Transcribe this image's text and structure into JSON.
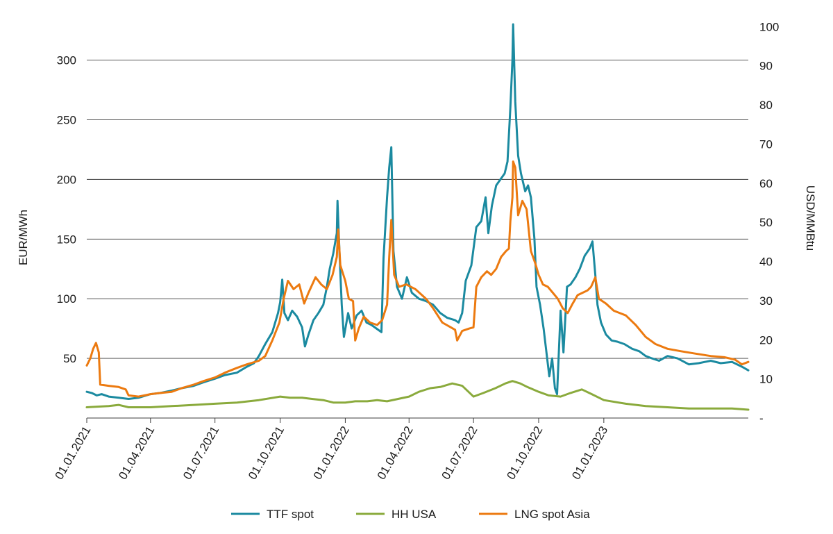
{
  "chart_data": {
    "type": "line",
    "title": "",
    "ylabel_left": "EUR/MWh",
    "ylabel_right": "USD/MMBtu",
    "ylim_left": [
      0,
      330
    ],
    "ylim_right": [
      0,
      100.6
    ],
    "yticks_left": [
      50,
      100,
      150,
      200,
      250,
      300
    ],
    "yticks_right": [
      "-",
      10,
      20,
      30,
      40,
      50,
      60,
      70,
      80,
      90,
      100
    ],
    "xlim": [
      "01.01.2021",
      "24.07.2023"
    ],
    "xticks": [
      "01.01.2021",
      "01.04.2021",
      "01.07.2021",
      "01.10.2021",
      "01.01.2022",
      "01.04.2022",
      "01.07.2022",
      "01.10.2022",
      "01.01.2023"
    ],
    "grid": "horizontal",
    "legend_position": "bottom-center",
    "series": [
      {
        "name": "TTF spot",
        "axis": "left",
        "color": "#1b8aa0",
        "points": [
          [
            "2021-01-01",
            22
          ],
          [
            "2021-01-08",
            21
          ],
          [
            "2021-01-15",
            19
          ],
          [
            "2021-01-22",
            20
          ],
          [
            "2021-02-01",
            18
          ],
          [
            "2021-02-15",
            17
          ],
          [
            "2021-03-01",
            16
          ],
          [
            "2021-03-15",
            17
          ],
          [
            "2021-04-01",
            20
          ],
          [
            "2021-04-15",
            21
          ],
          [
            "2021-05-01",
            23
          ],
          [
            "2021-05-15",
            25
          ],
          [
            "2021-06-01",
            27
          ],
          [
            "2021-06-15",
            30
          ],
          [
            "2021-07-01",
            33
          ],
          [
            "2021-07-15",
            36
          ],
          [
            "2021-08-01",
            38
          ],
          [
            "2021-08-15",
            43
          ],
          [
            "2021-08-25",
            46
          ],
          [
            "2021-09-01",
            52
          ],
          [
            "2021-09-10",
            62
          ],
          [
            "2021-09-20",
            72
          ],
          [
            "2021-09-28",
            88
          ],
          [
            "2021-10-01",
            97
          ],
          [
            "2021-10-04",
            116
          ],
          [
            "2021-10-07",
            88
          ],
          [
            "2021-10-12",
            82
          ],
          [
            "2021-10-18",
            90
          ],
          [
            "2021-10-25",
            85
          ],
          [
            "2021-11-01",
            76
          ],
          [
            "2021-11-05",
            60
          ],
          [
            "2021-11-10",
            70
          ],
          [
            "2021-11-17",
            82
          ],
          [
            "2021-11-24",
            88
          ],
          [
            "2021-12-01",
            95
          ],
          [
            "2021-12-06",
            110
          ],
          [
            "2021-12-10",
            125
          ],
          [
            "2021-12-15",
            138
          ],
          [
            "2021-12-20",
            155
          ],
          [
            "2021-12-21",
            182
          ],
          [
            "2021-12-24",
            135
          ],
          [
            "2021-12-27",
            95
          ],
          [
            "2021-12-30",
            68
          ],
          [
            "2022-01-05",
            88
          ],
          [
            "2022-01-10",
            75
          ],
          [
            "2022-01-17",
            86
          ],
          [
            "2022-01-24",
            90
          ],
          [
            "2022-01-31",
            80
          ],
          [
            "2022-02-07",
            78
          ],
          [
            "2022-02-14",
            75
          ],
          [
            "2022-02-21",
            72
          ],
          [
            "2022-02-24",
            134
          ],
          [
            "2022-03-01",
            185
          ],
          [
            "2022-03-04",
            210
          ],
          [
            "2022-03-07",
            227
          ],
          [
            "2022-03-10",
            140
          ],
          [
            "2022-03-15",
            110
          ],
          [
            "2022-03-22",
            100
          ],
          [
            "2022-03-29",
            118
          ],
          [
            "2022-04-05",
            105
          ],
          [
            "2022-04-15",
            100
          ],
          [
            "2022-04-25",
            98
          ],
          [
            "2022-05-05",
            95
          ],
          [
            "2022-05-15",
            88
          ],
          [
            "2022-05-25",
            84
          ],
          [
            "2022-06-05",
            82
          ],
          [
            "2022-06-10",
            80
          ],
          [
            "2022-06-15",
            88
          ],
          [
            "2022-06-20",
            115
          ],
          [
            "2022-06-28",
            128
          ],
          [
            "2022-07-05",
            160
          ],
          [
            "2022-07-12",
            165
          ],
          [
            "2022-07-18",
            185
          ],
          [
            "2022-07-22",
            155
          ],
          [
            "2022-07-27",
            178
          ],
          [
            "2022-08-02",
            195
          ],
          [
            "2022-08-08",
            200
          ],
          [
            "2022-08-14",
            205
          ],
          [
            "2022-08-18",
            215
          ],
          [
            "2022-08-22",
            260
          ],
          [
            "2022-08-25",
            300
          ],
          [
            "2022-08-26",
            330
          ],
          [
            "2022-08-29",
            265
          ],
          [
            "2022-09-02",
            220
          ],
          [
            "2022-09-06",
            205
          ],
          [
            "2022-09-12",
            190
          ],
          [
            "2022-09-16",
            195
          ],
          [
            "2022-09-20",
            185
          ],
          [
            "2022-09-25",
            150
          ],
          [
            "2022-09-28",
            110
          ],
          [
            "2022-10-03",
            95
          ],
          [
            "2022-10-08",
            75
          ],
          [
            "2022-10-12",
            55
          ],
          [
            "2022-10-16",
            35
          ],
          [
            "2022-10-20",
            50
          ],
          [
            "2022-10-24",
            25
          ],
          [
            "2022-10-27",
            20
          ],
          [
            "2022-11-01",
            90
          ],
          [
            "2022-11-05",
            55
          ],
          [
            "2022-11-10",
            110
          ],
          [
            "2022-11-15",
            112
          ],
          [
            "2022-11-22",
            118
          ],
          [
            "2022-11-28",
            125
          ],
          [
            "2022-12-05",
            136
          ],
          [
            "2022-12-12",
            142
          ],
          [
            "2022-12-16",
            148
          ],
          [
            "2022-12-20",
            120
          ],
          [
            "2022-12-23",
            95
          ],
          [
            "2022-12-28",
            80
          ],
          [
            "2023-01-04",
            70
          ],
          [
            "2023-01-12",
            65
          ],
          [
            "2023-01-20",
            64
          ],
          [
            "2023-01-30",
            62
          ],
          [
            "2023-02-10",
            58
          ],
          [
            "2023-02-20",
            56
          ],
          [
            "2023-03-01",
            52
          ],
          [
            "2023-03-10",
            50
          ],
          [
            "2023-03-20",
            48
          ],
          [
            "2023-04-01",
            52
          ],
          [
            "2023-04-15",
            50
          ],
          [
            "2023-05-01",
            45
          ],
          [
            "2023-05-15",
            46
          ],
          [
            "2023-06-01",
            48
          ],
          [
            "2023-06-15",
            46
          ],
          [
            "2023-07-01",
            47
          ],
          [
            "2023-07-15",
            43
          ],
          [
            "2023-07-24",
            40
          ]
        ]
      },
      {
        "name": "HH USA",
        "axis": "left",
        "color": "#8aaa3c",
        "points": [
          [
            "2021-01-01",
            9
          ],
          [
            "2021-02-01",
            10
          ],
          [
            "2021-02-15",
            11
          ],
          [
            "2021-03-01",
            9
          ],
          [
            "2021-04-01",
            9
          ],
          [
            "2021-05-01",
            10
          ],
          [
            "2021-06-01",
            11
          ],
          [
            "2021-07-01",
            12
          ],
          [
            "2021-08-01",
            13
          ],
          [
            "2021-09-01",
            15
          ],
          [
            "2021-10-01",
            18
          ],
          [
            "2021-10-15",
            17
          ],
          [
            "2021-11-01",
            17
          ],
          [
            "2021-11-15",
            16
          ],
          [
            "2021-12-01",
            15
          ],
          [
            "2021-12-15",
            13
          ],
          [
            "2022-01-01",
            13
          ],
          [
            "2022-01-15",
            14
          ],
          [
            "2022-02-01",
            14
          ],
          [
            "2022-02-15",
            15
          ],
          [
            "2022-03-01",
            14
          ],
          [
            "2022-04-01",
            18
          ],
          [
            "2022-04-15",
            22
          ],
          [
            "2022-05-01",
            25
          ],
          [
            "2022-05-15",
            26
          ],
          [
            "2022-06-01",
            29
          ],
          [
            "2022-06-15",
            27
          ],
          [
            "2022-07-01",
            18
          ],
          [
            "2022-07-15",
            21
          ],
          [
            "2022-08-01",
            25
          ],
          [
            "2022-08-15",
            29
          ],
          [
            "2022-08-25",
            31
          ],
          [
            "2022-09-05",
            29
          ],
          [
            "2022-09-15",
            26
          ],
          [
            "2022-10-01",
            22
          ],
          [
            "2022-10-15",
            19
          ],
          [
            "2022-11-01",
            18
          ],
          [
            "2022-11-15",
            21
          ],
          [
            "2022-12-01",
            24
          ],
          [
            "2022-12-15",
            20
          ],
          [
            "2023-01-01",
            15
          ],
          [
            "2023-02-01",
            12
          ],
          [
            "2023-03-01",
            10
          ],
          [
            "2023-04-01",
            9
          ],
          [
            "2023-05-01",
            8
          ],
          [
            "2023-06-01",
            8
          ],
          [
            "2023-07-01",
            8
          ],
          [
            "2023-07-24",
            7
          ]
        ]
      },
      {
        "name": "LNG spot Asia",
        "axis": "left",
        "color": "#ec7a10",
        "points": [
          [
            "2021-01-01",
            44
          ],
          [
            "2021-01-06",
            50
          ],
          [
            "2021-01-10",
            58
          ],
          [
            "2021-01-14",
            63
          ],
          [
            "2021-01-18",
            55
          ],
          [
            "2021-01-20",
            28
          ],
          [
            "2021-02-01",
            27
          ],
          [
            "2021-02-15",
            26
          ],
          [
            "2021-02-25",
            24
          ],
          [
            "2021-03-01",
            19
          ],
          [
            "2021-03-15",
            18
          ],
          [
            "2021-04-01",
            20
          ],
          [
            "2021-04-15",
            21
          ],
          [
            "2021-05-01",
            22
          ],
          [
            "2021-05-15",
            25
          ],
          [
            "2021-06-01",
            28
          ],
          [
            "2021-06-15",
            31
          ],
          [
            "2021-07-01",
            34
          ],
          [
            "2021-07-15",
            38
          ],
          [
            "2021-08-01",
            42
          ],
          [
            "2021-08-15",
            45
          ],
          [
            "2021-09-01",
            48
          ],
          [
            "2021-09-10",
            52
          ],
          [
            "2021-09-20",
            65
          ],
          [
            "2021-09-30",
            80
          ],
          [
            "2021-10-06",
            100
          ],
          [
            "2021-10-12",
            115
          ],
          [
            "2021-10-20",
            108
          ],
          [
            "2021-10-28",
            112
          ],
          [
            "2021-11-04",
            96
          ],
          [
            "2021-11-10",
            105
          ],
          [
            "2021-11-20",
            118
          ],
          [
            "2021-11-28",
            112
          ],
          [
            "2021-12-06",
            108
          ],
          [
            "2021-12-14",
            120
          ],
          [
            "2021-12-20",
            135
          ],
          [
            "2021-12-22",
            158
          ],
          [
            "2021-12-25",
            128
          ],
          [
            "2022-01-01",
            115
          ],
          [
            "2022-01-06",
            100
          ],
          [
            "2022-01-12",
            98
          ],
          [
            "2022-01-15",
            65
          ],
          [
            "2022-01-20",
            75
          ],
          [
            "2022-01-27",
            85
          ],
          [
            "2022-02-05",
            80
          ],
          [
            "2022-02-15",
            78
          ],
          [
            "2022-02-22",
            82
          ],
          [
            "2022-03-01",
            95
          ],
          [
            "2022-03-04",
            135
          ],
          [
            "2022-03-07",
            166
          ],
          [
            "2022-03-11",
            120
          ],
          [
            "2022-03-18",
            110
          ],
          [
            "2022-03-28",
            112
          ],
          [
            "2022-04-10",
            108
          ],
          [
            "2022-04-25",
            100
          ],
          [
            "2022-05-05",
            92
          ],
          [
            "2022-05-18",
            80
          ],
          [
            "2022-05-30",
            76
          ],
          [
            "2022-06-05",
            74
          ],
          [
            "2022-06-08",
            65
          ],
          [
            "2022-06-15",
            73
          ],
          [
            "2022-06-25",
            75
          ],
          [
            "2022-07-01",
            76
          ],
          [
            "2022-07-05",
            110
          ],
          [
            "2022-07-12",
            118
          ],
          [
            "2022-07-20",
            123
          ],
          [
            "2022-07-26",
            120
          ],
          [
            "2022-08-02",
            125
          ],
          [
            "2022-08-09",
            135
          ],
          [
            "2022-08-16",
            140
          ],
          [
            "2022-08-20",
            142
          ],
          [
            "2022-08-22",
            165
          ],
          [
            "2022-08-25",
            185
          ],
          [
            "2022-08-26",
            215
          ],
          [
            "2022-08-29",
            210
          ],
          [
            "2022-09-02",
            170
          ],
          [
            "2022-09-08",
            182
          ],
          [
            "2022-09-14",
            175
          ],
          [
            "2022-09-20",
            140
          ],
          [
            "2022-09-26",
            130
          ],
          [
            "2022-10-01",
            120
          ],
          [
            "2022-10-07",
            112
          ],
          [
            "2022-10-14",
            110
          ],
          [
            "2022-10-21",
            105
          ],
          [
            "2022-10-28",
            100
          ],
          [
            "2022-11-04",
            92
          ],
          [
            "2022-11-11",
            88
          ],
          [
            "2022-11-18",
            96
          ],
          [
            "2022-11-25",
            103
          ],
          [
            "2022-12-02",
            105
          ],
          [
            "2022-12-09",
            107
          ],
          [
            "2022-12-14",
            110
          ],
          [
            "2022-12-20",
            118
          ],
          [
            "2022-12-25",
            100
          ],
          [
            "2023-01-04",
            96
          ],
          [
            "2023-01-15",
            90
          ],
          [
            "2023-02-01",
            86
          ],
          [
            "2023-02-15",
            78
          ],
          [
            "2023-03-01",
            68
          ],
          [
            "2023-03-15",
            62
          ],
          [
            "2023-04-01",
            58
          ],
          [
            "2023-04-20",
            56
          ],
          [
            "2023-05-10",
            54
          ],
          [
            "2023-06-01",
            52
          ],
          [
            "2023-06-20",
            51
          ],
          [
            "2023-07-05",
            49
          ],
          [
            "2023-07-15",
            45
          ],
          [
            "2023-07-24",
            47
          ]
        ]
      }
    ]
  }
}
